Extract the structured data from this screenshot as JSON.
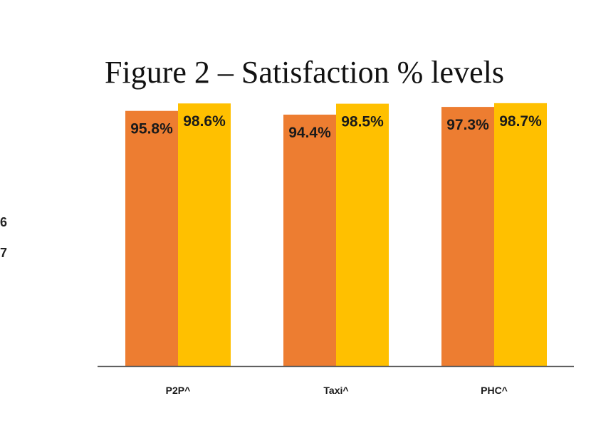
{
  "chart_data": {
    "type": "bar",
    "title": "Figure 2 – Satisfaction % levels",
    "categories": [
      "P2P^",
      "Taxi^",
      "PHC^"
    ],
    "series": [
      {
        "color": "#ED7D31",
        "values": [
          95.8,
          94.4,
          97.3
        ],
        "labels": [
          "95.8%",
          "94.4%",
          "97.3%"
        ]
      },
      {
        "color": "#FFC000",
        "values": [
          98.6,
          98.5,
          98.7
        ],
        "labels": [
          "98.6%",
          "98.5%",
          "98.7%"
        ]
      }
    ],
    "ylim": [
      0,
      100
    ],
    "xlabel": "",
    "ylabel": "",
    "grid": false,
    "legend": "none"
  },
  "cropped_edge_text": [
    "6",
    "7"
  ]
}
